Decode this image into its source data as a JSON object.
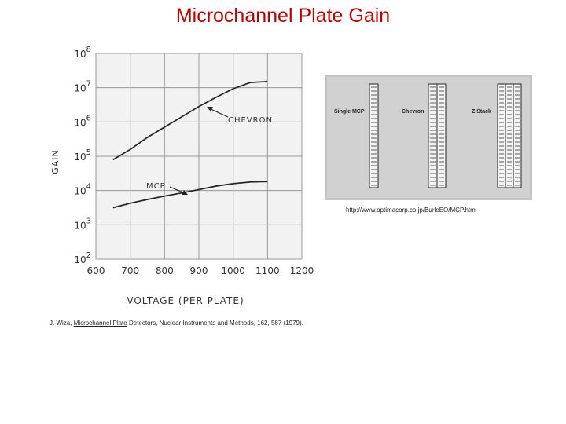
{
  "slide": {
    "title": "Microchannel Plate Gain",
    "source_url": "http://www.optimacorp.co.jp/BurleEO/MCP.htm",
    "citation": {
      "authors": "J. Wiza,",
      "title": "Microchannel Plate",
      "rest": "Detectors, Nuclear Instruments and Methods, 162, 587 (1979)."
    }
  },
  "chart_data": {
    "type": "line",
    "xlabel": "VOLTAGE (PER PLATE)",
    "ylabel": "GAIN",
    "x_ticks": [
      600,
      700,
      800,
      900,
      1000,
      1100,
      1200
    ],
    "y_ticks": [
      2,
      3,
      4,
      5,
      6,
      7,
      8
    ],
    "y_tick_base": "10",
    "xlim": [
      600,
      1200
    ],
    "ylim_log10": [
      2,
      8
    ],
    "grid": true,
    "series": [
      {
        "name": "CHEVRON",
        "x": [
          650,
          700,
          750,
          800,
          850,
          900,
          950,
          1000,
          1050,
          1100
        ],
        "log10_gain": [
          4.9,
          5.2,
          5.55,
          5.85,
          6.15,
          6.45,
          6.72,
          6.97,
          7.15,
          7.18
        ]
      },
      {
        "name": "MCP",
        "x": [
          650,
          700,
          750,
          800,
          850,
          900,
          950,
          1000,
          1050,
          1100
        ],
        "log10_gain": [
          3.5,
          3.63,
          3.74,
          3.84,
          3.93,
          4.03,
          4.13,
          4.2,
          4.25,
          4.26
        ]
      }
    ],
    "annotations": [
      "CHEVRON",
      "MCP"
    ]
  },
  "mcp_figure": {
    "labels": [
      "Single MCP",
      "Chevron",
      "Z Stack"
    ]
  }
}
